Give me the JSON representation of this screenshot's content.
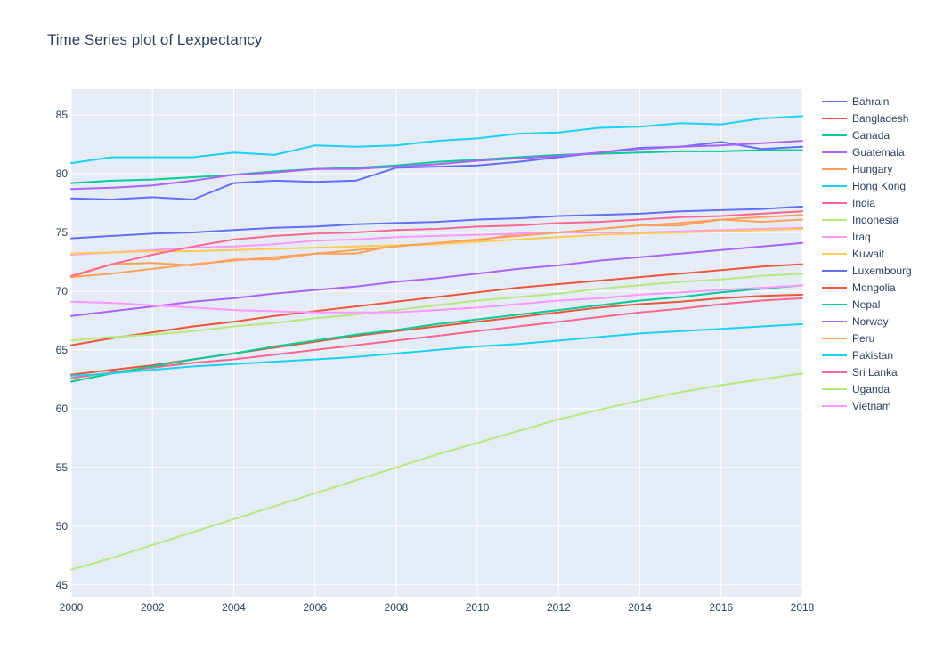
{
  "chart_data": {
    "type": "line",
    "title": "Time Series plot of Lexpectancy",
    "xlabel": "",
    "ylabel": "",
    "xlim": [
      2000,
      2018
    ],
    "ylim": [
      44,
      87.2
    ],
    "x_ticks": [
      2000,
      2002,
      2004,
      2006,
      2008,
      2010,
      2012,
      2014,
      2016,
      2018
    ],
    "y_ticks": [
      45,
      50,
      55,
      60,
      65,
      70,
      75,
      80,
      85
    ],
    "grid": true,
    "legend_position": "right",
    "plot_background": "#e5ecf6",
    "x": [
      2000,
      2001,
      2002,
      2003,
      2004,
      2005,
      2006,
      2007,
      2008,
      2009,
      2010,
      2011,
      2012,
      2013,
      2014,
      2015,
      2016,
      2017,
      2018
    ],
    "series": [
      {
        "name": "Bahrain",
        "color": "#636efa",
        "values": [
          74.5,
          74.7,
          74.9,
          75.0,
          75.2,
          75.4,
          75.5,
          75.7,
          75.8,
          75.9,
          76.1,
          76.2,
          76.4,
          76.5,
          76.6,
          76.8,
          76.9,
          77.0,
          77.2
        ]
      },
      {
        "name": "Bangladesh",
        "color": "#EF553B",
        "values": [
          65.4,
          66.0,
          66.5,
          67.0,
          67.4,
          67.9,
          68.3,
          68.7,
          69.1,
          69.5,
          69.9,
          70.3,
          70.6,
          70.9,
          71.2,
          71.5,
          71.8,
          72.1,
          72.3
        ]
      },
      {
        "name": "Canada",
        "color": "#00cc96",
        "values": [
          79.2,
          79.4,
          79.5,
          79.7,
          79.9,
          80.2,
          80.4,
          80.5,
          80.7,
          81.0,
          81.2,
          81.4,
          81.6,
          81.7,
          81.8,
          81.9,
          81.9,
          82.0,
          82.0
        ]
      },
      {
        "name": "Guatemala",
        "color": "#ab63fa",
        "values": [
          67.9,
          68.3,
          68.7,
          69.1,
          69.4,
          69.8,
          70.1,
          70.4,
          70.8,
          71.1,
          71.5,
          71.9,
          72.2,
          72.6,
          72.9,
          73.2,
          73.5,
          73.8,
          74.1
        ]
      },
      {
        "name": "Hungary",
        "color": "#FFA15A",
        "values": [
          71.2,
          72.3,
          72.4,
          72.2,
          72.7,
          72.7,
          73.2,
          73.2,
          73.9,
          74.0,
          74.3,
          74.9,
          75.0,
          75.3,
          75.6,
          75.6,
          76.1,
          75.9,
          76.1
        ]
      },
      {
        "name": "Hong Kong",
        "color": "#19d3f3",
        "values": [
          80.9,
          81.4,
          81.4,
          81.4,
          81.8,
          81.6,
          82.4,
          82.3,
          82.4,
          82.8,
          83.0,
          83.4,
          83.5,
          83.9,
          84.0,
          84.3,
          84.2,
          84.7,
          84.9
        ]
      },
      {
        "name": "India",
        "color": "#FF6692",
        "values": [
          62.6,
          63.1,
          63.5,
          63.9,
          64.2,
          64.6,
          65.0,
          65.4,
          65.8,
          66.2,
          66.6,
          67.0,
          67.4,
          67.8,
          68.2,
          68.5,
          68.9,
          69.2,
          69.4
        ]
      },
      {
        "name": "Indonesia",
        "color": "#B6E880",
        "values": [
          65.8,
          66.1,
          66.3,
          66.6,
          67.0,
          67.3,
          67.7,
          68.0,
          68.4,
          68.8,
          69.2,
          69.5,
          69.8,
          70.2,
          70.5,
          70.8,
          71.0,
          71.3,
          71.5
        ]
      },
      {
        "name": "Iraq",
        "color": "#FF97FF",
        "values": [
          73.1,
          73.3,
          73.5,
          73.7,
          73.8,
          74.0,
          74.3,
          74.4,
          74.6,
          74.7,
          74.8,
          74.9,
          75.0,
          75.0,
          75.0,
          75.1,
          75.2,
          75.3,
          75.4
        ]
      },
      {
        "name": "Kuwait",
        "color": "#FECB52",
        "values": [
          73.2,
          73.3,
          73.4,
          73.4,
          73.5,
          73.6,
          73.7,
          73.8,
          73.9,
          74.0,
          74.2,
          74.4,
          74.6,
          74.8,
          74.9,
          75.0,
          75.1,
          75.2,
          75.3
        ]
      },
      {
        "name": "Luxembourg",
        "color": "#636efa",
        "values": [
          77.9,
          77.8,
          78.0,
          77.8,
          79.2,
          79.4,
          79.3,
          79.4,
          80.5,
          80.6,
          80.7,
          81.0,
          81.4,
          81.8,
          82.2,
          82.3,
          82.7,
          82.1,
          82.3
        ]
      },
      {
        "name": "Mongolia",
        "color": "#EF553B",
        "values": [
          62.9,
          63.3,
          63.7,
          64.2,
          64.7,
          65.2,
          65.7,
          66.2,
          66.6,
          67.0,
          67.4,
          67.8,
          68.2,
          68.6,
          68.9,
          69.1,
          69.4,
          69.6,
          69.7
        ]
      },
      {
        "name": "Nepal",
        "color": "#00cc96",
        "values": [
          62.3,
          63.0,
          63.6,
          64.2,
          64.7,
          65.3,
          65.8,
          66.3,
          66.7,
          67.2,
          67.6,
          68.0,
          68.4,
          68.8,
          69.2,
          69.5,
          69.9,
          70.2,
          70.5
        ]
      },
      {
        "name": "Norway",
        "color": "#ab63fa",
        "values": [
          78.7,
          78.8,
          79.0,
          79.4,
          79.9,
          80.1,
          80.4,
          80.4,
          80.6,
          80.8,
          81.1,
          81.3,
          81.5,
          81.8,
          82.1,
          82.3,
          82.4,
          82.6,
          82.8
        ]
      },
      {
        "name": "Peru",
        "color": "#FFA15A",
        "values": [
          71.2,
          71.5,
          71.9,
          72.3,
          72.6,
          72.9,
          73.2,
          73.5,
          73.8,
          74.1,
          74.4,
          74.7,
          75.0,
          75.3,
          75.6,
          75.8,
          76.1,
          76.3,
          76.5
        ]
      },
      {
        "name": "Pakistan",
        "color": "#19d3f3",
        "values": [
          62.8,
          63.0,
          63.3,
          63.6,
          63.8,
          64.0,
          64.2,
          64.4,
          64.7,
          65.0,
          65.3,
          65.5,
          65.8,
          66.1,
          66.4,
          66.6,
          66.8,
          67.0,
          67.2
        ]
      },
      {
        "name": "Sri Lanka",
        "color": "#FF6692",
        "values": [
          71.3,
          72.3,
          73.1,
          73.8,
          74.4,
          74.7,
          74.9,
          75.0,
          75.2,
          75.3,
          75.5,
          75.6,
          75.8,
          75.9,
          76.1,
          76.3,
          76.4,
          76.6,
          76.8
        ]
      },
      {
        "name": "Uganda",
        "color": "#B6E880",
        "values": [
          46.3,
          47.3,
          48.4,
          49.5,
          50.6,
          51.7,
          52.8,
          53.9,
          55.0,
          56.1,
          57.1,
          58.1,
          59.1,
          59.9,
          60.7,
          61.4,
          62.0,
          62.5,
          63.0
        ]
      },
      {
        "name": "Vietnam",
        "color": "#FF97FF",
        "values": [
          69.1,
          69.0,
          68.8,
          68.6,
          68.4,
          68.3,
          68.2,
          68.2,
          68.2,
          68.4,
          68.6,
          68.9,
          69.2,
          69.4,
          69.7,
          69.9,
          70.1,
          70.3,
          70.5
        ]
      }
    ]
  }
}
